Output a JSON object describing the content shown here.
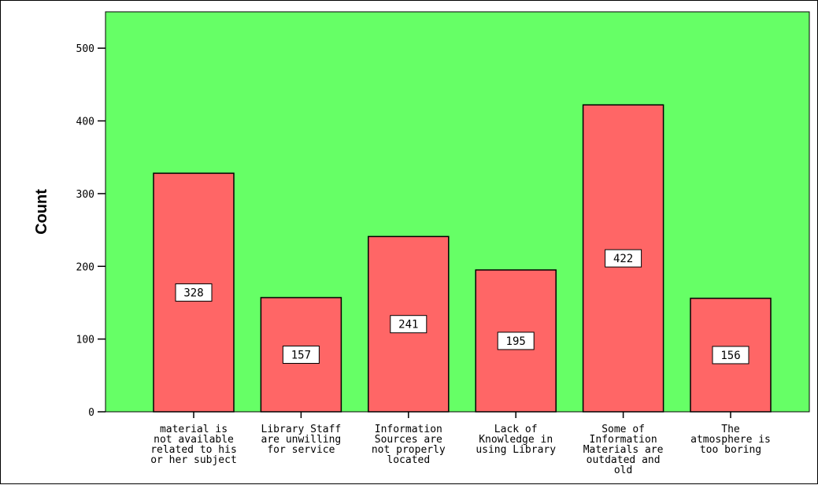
{
  "chart_data": {
    "type": "bar",
    "title": "",
    "xlabel": "",
    "ylabel": "Count",
    "ylim": [
      0,
      550
    ],
    "yticks": [
      0,
      100,
      200,
      300,
      400,
      500
    ],
    "grid": false,
    "legend": "none",
    "categories": [
      [
        "material is",
        "not available",
        "related to his",
        "or her subject"
      ],
      [
        "Library Staff",
        "are unwilling",
        "for service"
      ],
      [
        "Information",
        "Sources are",
        "not properly",
        "located"
      ],
      [
        "Lack of",
        "Knowledge in",
        "using Library"
      ],
      [
        "Some of",
        "Information",
        "Materials are",
        "outdated and",
        "old"
      ],
      [
        "The",
        "atmosphere is",
        "too boring"
      ]
    ],
    "values": [
      328,
      157,
      241,
      195,
      422,
      156
    ],
    "colors": {
      "plot_background": "#66ff66",
      "bar_fill": "#ff6666",
      "bar_stroke": "#000000",
      "label_box": "#ffffff"
    }
  }
}
